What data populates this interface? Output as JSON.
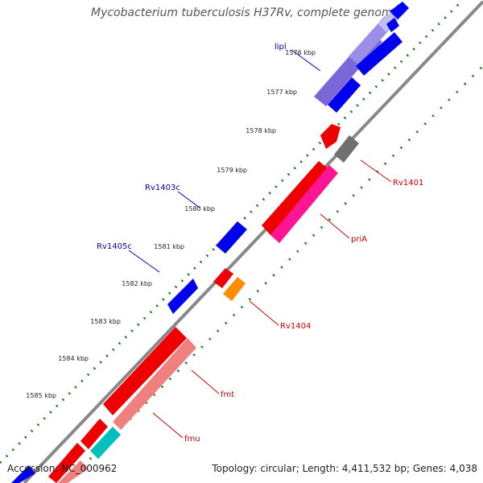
{
  "title": "Mycobacterium tuberculosis H37Rv, complete genome",
  "accession": "Accession: NC_000962",
  "summary": "Topology: circular; Length: 4,411,532 bp; Genes: 4,038",
  "colors": {
    "backbone": "#888888",
    "tick": "#1a7a1a",
    "blue": "#0000ee",
    "violet": "#7b68d8",
    "red": "#ee0000",
    "pink": "#ff1493",
    "salmon": "#f08080",
    "orange": "#ff8c00",
    "teal": "#00bfbf",
    "gray": "#707070",
    "blue_label": "#0000aa",
    "red_label": "#cc0000"
  },
  "ruler": [
    {
      "label": "1576 kbp"
    },
    {
      "label": "1577 kbp"
    },
    {
      "label": "1578 kbp"
    },
    {
      "label": "1579 kbp"
    },
    {
      "label": "1580 kbp"
    },
    {
      "label": "1581 kbp"
    },
    {
      "label": "1582 kbp"
    },
    {
      "label": "1583 kbp"
    },
    {
      "label": "1584 kbp"
    },
    {
      "label": "1585 kbp"
    }
  ],
  "gene_labels": [
    {
      "name": "lipl",
      "side": "left"
    },
    {
      "name": "Rv1403c",
      "side": "left"
    },
    {
      "name": "Rv1405c",
      "side": "left"
    },
    {
      "name": "Rv1401",
      "side": "right"
    },
    {
      "name": "priA",
      "side": "right"
    },
    {
      "name": "Rv1404",
      "side": "right"
    },
    {
      "name": "fmt",
      "side": "right"
    },
    {
      "name": "fmu",
      "side": "right"
    }
  ]
}
